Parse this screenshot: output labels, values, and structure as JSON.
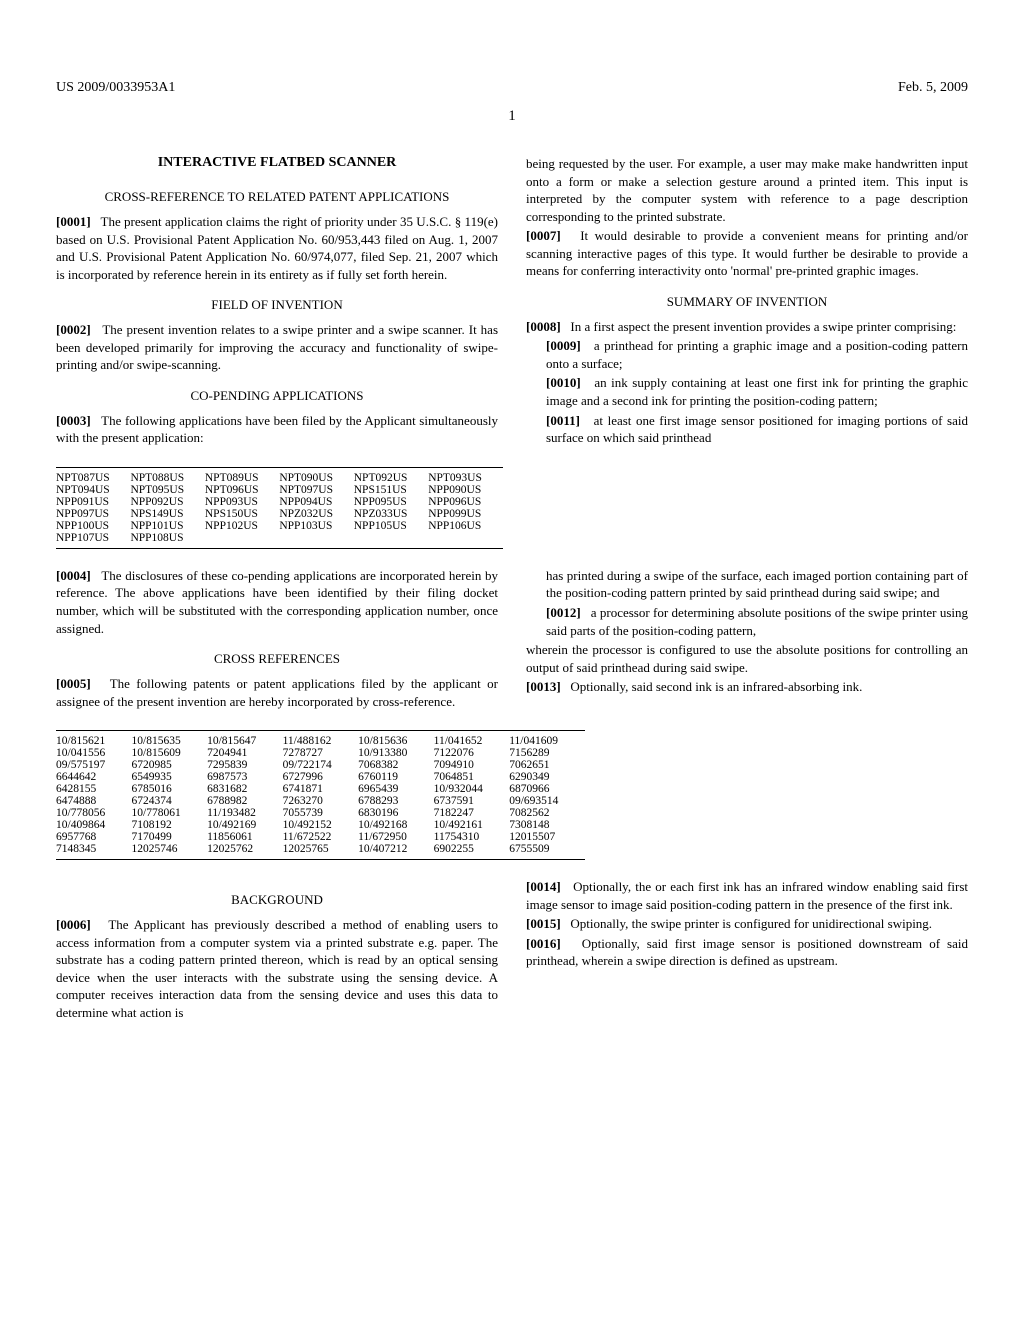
{
  "header": {
    "pub_no": "US 2009/0033953A1",
    "date": "Feb. 5, 2009"
  },
  "page_number": "1",
  "title": "INTERACTIVE FLATBED SCANNER",
  "sections": {
    "cross_ref_related": "CROSS-REFERENCE TO RELATED PATENT APPLICATIONS",
    "field": "FIELD OF INVENTION",
    "copending": "CO-PENDING APPLICATIONS",
    "cross_refs": "CROSS REFERENCES",
    "background": "BACKGROUND",
    "summary": "SUMMARY OF INVENTION"
  },
  "paras": {
    "p1": {
      "n": "[0001]",
      "t": "The present application claims the right of priority under 35 U.S.C. § 119(e) based on U.S. Provisional Patent Application No. 60/953,443 filed on Aug. 1, 2007 and U.S. Provisional Patent Application No. 60/974,077, filed Sep. 21, 2007 which is incorporated by reference herein in its entirety as if fully set forth herein."
    },
    "p2": {
      "n": "[0002]",
      "t": "The present invention relates to a swipe printer and a swipe scanner. It has been developed primarily for improving the accuracy and functionality of swipe-printing and/or swipe-scanning."
    },
    "p3": {
      "n": "[0003]",
      "t": "The following applications have been filed by the Applicant simultaneously with the present application:"
    },
    "p4": {
      "n": "[0004]",
      "t": "The disclosures of these co-pending applications are incorporated herein by reference. The above applications have been identified by their filing docket number, which will be substituted with the corresponding application number, once assigned."
    },
    "p5": {
      "n": "[0005]",
      "t": "The following patents or patent applications filed by the applicant or assignee of the present invention are hereby incorporated by cross-reference."
    },
    "p6": {
      "n": "[0006]",
      "t": "The Applicant has previously described a method of enabling users to access information from a computer system via a printed substrate e.g. paper. The substrate has a coding pattern printed thereon, which is read by an optical sensing device when the user interacts with the substrate using the sensing device. A computer receives interaction data from the sensing device and uses this data to determine what action is"
    },
    "p6b": "being requested by the user. For example, a user may make make handwritten input onto a form or make a selection gesture around a printed item. This input is interpreted by the computer system with reference to a page description corresponding to the printed substrate.",
    "p7": {
      "n": "[0007]",
      "t": "It would desirable to provide a convenient means for printing and/or scanning interactive pages of this type. It would further be desirable to provide a means for conferring interactivity onto 'normal' pre-printed graphic images."
    },
    "p8": {
      "n": "[0008]",
      "t": "In a first aspect the present invention provides a swipe printer comprising:"
    },
    "p9": {
      "n": "[0009]",
      "t": "a printhead for printing a graphic image and a position-coding pattern onto a surface;"
    },
    "p10": {
      "n": "[0010]",
      "t": "an ink supply containing at least one first ink for printing the graphic image and a second ink for printing the position-coding pattern;"
    },
    "p11": {
      "n": "[0011]",
      "t": "at least one first image sensor positioned for imaging portions of said surface on which said printhead"
    },
    "p11b": "has printed during a swipe of the surface, each imaged portion containing part of the position-coding pattern printed by said printhead during said swipe; and",
    "p12": {
      "n": "[0012]",
      "t": "a processor for determining absolute positions of the swipe printer using said parts of the position-coding pattern,"
    },
    "p12b": "wherein the processor is configured to use the absolute positions for controlling an output of said printhead during said swipe.",
    "p13": {
      "n": "[0013]",
      "t": "Optionally, said second ink is an infrared-absorbing ink."
    },
    "p14": {
      "n": "[0014]",
      "t": "Optionally, the or each first ink has an infrared window enabling said first image sensor to image said position-coding pattern in the presence of the first ink."
    },
    "p15": {
      "n": "[0015]",
      "t": "Optionally, the swipe printer is configured for unidirectional swiping."
    },
    "p16": {
      "n": "[0016]",
      "t": "Optionally, said first image sensor is positioned downstream of said printhead, wherein a swipe direction is defined as upstream."
    }
  },
  "table1": [
    [
      "NPT087US",
      "NPT088US",
      "NPT089US",
      "NPT090US",
      "NPT092US",
      "NPT093US"
    ],
    [
      "NPT094US",
      "NPT095US",
      "NPT096US",
      "NPT097US",
      "NPS151US",
      "NPP090US"
    ],
    [
      "NPP091US",
      "NPP092US",
      "NPP093US",
      "NPP094US",
      "NPP095US",
      "NPP096US"
    ],
    [
      "NPP097US",
      "NPS149US",
      "NPS150US",
      "NPZ032US",
      "NPZ033US",
      "NPP099US"
    ],
    [
      "NPP100US",
      "NPP101US",
      "NPP102US",
      "NPP103US",
      "NPP105US",
      "NPP106US"
    ],
    [
      "NPP107US",
      "NPP108US",
      "",
      "",
      "",
      ""
    ]
  ],
  "table2": [
    [
      "10/815621",
      "10/815635",
      "10/815647",
      "11/488162",
      "10/815636",
      "11/041652",
      "11/041609"
    ],
    [
      "10/041556",
      "10/815609",
      "7204941",
      "7278727",
      "10/913380",
      "7122076",
      "7156289"
    ],
    [
      "09/575197",
      "6720985",
      "7295839",
      "09/722174",
      "7068382",
      "7094910",
      "7062651"
    ],
    [
      "6644642",
      "6549935",
      "6987573",
      "6727996",
      "6760119",
      "7064851",
      "6290349"
    ],
    [
      "6428155",
      "6785016",
      "6831682",
      "6741871",
      "6965439",
      "10/932044",
      "6870966"
    ],
    [
      "6474888",
      "6724374",
      "6788982",
      "7263270",
      "6788293",
      "6737591",
      "09/693514"
    ],
    [
      "10/778056",
      "10/778061",
      "11/193482",
      "7055739",
      "6830196",
      "7182247",
      "7082562"
    ],
    [
      "10/409864",
      "7108192",
      "10/492169",
      "10/492152",
      "10/492168",
      "10/492161",
      "7308148"
    ],
    [
      "6957768",
      "7170499",
      "11856061",
      "11/672522",
      "11/672950",
      "11754310",
      "12015507"
    ],
    [
      "7148345",
      "12025746",
      "12025762",
      "12025765",
      "10/407212",
      "6902255",
      "6755509"
    ]
  ]
}
